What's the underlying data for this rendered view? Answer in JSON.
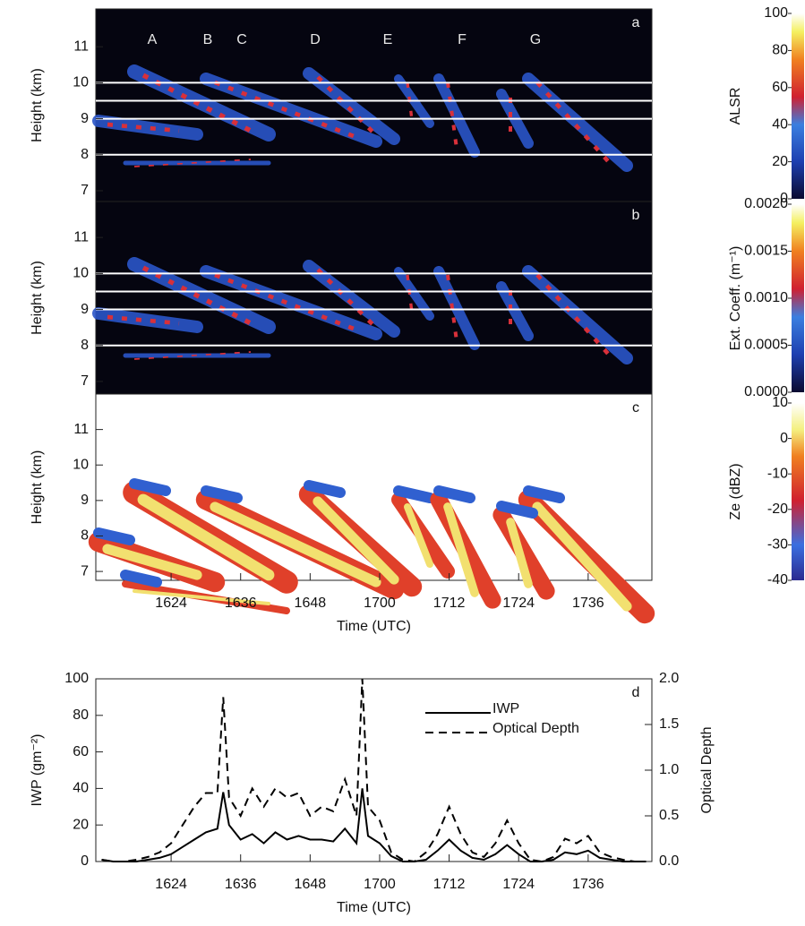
{
  "chart_data": [
    {
      "type": "heatmap",
      "panel_label": "a",
      "annotations": [
        "A",
        "B",
        "C",
        "D",
        "E",
        "F",
        "G"
      ],
      "ylabel": "Height (km)",
      "ylim": [
        6.7,
        12.05
      ],
      "yticks": [
        7,
        8,
        9,
        10,
        11
      ],
      "reference_lines": [
        8,
        9,
        9.5,
        10
      ],
      "colorbar": {
        "label": "ALSR",
        "lim": [
          0,
          100
        ],
        "ticks": [
          0,
          20,
          40,
          60,
          80,
          100
        ]
      }
    },
    {
      "type": "heatmap",
      "panel_label": "b",
      "ylabel": "Height (km)",
      "ylim": [
        6.65,
        12.0
      ],
      "yticks": [
        7,
        8,
        9,
        10,
        11
      ],
      "reference_lines": [
        8,
        9,
        9.5,
        10
      ],
      "colorbar": {
        "label": "Ext. Coeff. (m⁻¹)",
        "lim": [
          0,
          0.002
        ],
        "ticks": [
          {
            "value": 0,
            "label": "0.0000"
          },
          {
            "value": 0.0005,
            "label": "0.0005"
          },
          {
            "value": 0.001,
            "label": "0.0010"
          },
          {
            "value": 0.0015,
            "label": "0.0015"
          },
          {
            "value": 0.002,
            "label": "0.0020"
          }
        ]
      }
    },
    {
      "type": "heatmap",
      "panel_label": "c",
      "ylabel": "Height (km)",
      "ylim": [
        6.75,
        12.0
      ],
      "yticks": [
        7,
        8,
        9,
        10,
        11
      ],
      "colorbar": {
        "label": "Ze (dBZ)",
        "lim": [
          -40,
          10
        ],
        "ticks": [
          -40,
          -30,
          -20,
          -10,
          0,
          10
        ]
      },
      "xlabel": "Time (UTC)",
      "xlim": [
        971,
        1067
      ],
      "xticks": [
        {
          "value": 984,
          "label": "1624"
        },
        {
          "value": 996,
          "label": "1636"
        },
        {
          "value": 1008,
          "label": "1648"
        },
        {
          "value": 1020,
          "label": "1700"
        },
        {
          "value": 1032,
          "label": "1712"
        },
        {
          "value": 1044,
          "label": "1724"
        },
        {
          "value": 1056,
          "label": "1736"
        }
      ]
    },
    {
      "type": "line",
      "panel_label": "d",
      "ylabel": "IWP (gm⁻²)",
      "y2label": "Optical Depth",
      "xlabel": "Time (UTC)",
      "xlim": [
        971,
        1067
      ],
      "xticks": [
        {
          "value": 984,
          "label": "1624"
        },
        {
          "value": 996,
          "label": "1636"
        },
        {
          "value": 1008,
          "label": "1648"
        },
        {
          "value": 1020,
          "label": "1700"
        },
        {
          "value": 1032,
          "label": "1712"
        },
        {
          "value": 1044,
          "label": "1724"
        },
        {
          "value": 1056,
          "label": "1736"
        }
      ],
      "ylim": [
        0,
        100
      ],
      "yticks": [
        0,
        20,
        40,
        60,
        80,
        100
      ],
      "y2lim": [
        0,
        2
      ],
      "y2ticks": [
        {
          "value": 0,
          "label": "0.0"
        },
        {
          "value": 0.5,
          "label": "0.5"
        },
        {
          "value": 1,
          "label": "1.0"
        },
        {
          "value": 1.5,
          "label": "1.5"
        },
        {
          "value": 2,
          "label": "2.0"
        }
      ],
      "legend": "upper right",
      "x": [
        972,
        974,
        976,
        978,
        980,
        982,
        984,
        986,
        988,
        990,
        992,
        993,
        994,
        996,
        998,
        1000,
        1002,
        1004,
        1006,
        1008,
        1010,
        1012,
        1014,
        1016,
        1017,
        1018,
        1020,
        1022,
        1024,
        1026,
        1028,
        1030,
        1032,
        1034,
        1036,
        1038,
        1040,
        1042,
        1044,
        1046,
        1048,
        1050,
        1052,
        1054,
        1056,
        1058,
        1060,
        1062,
        1064,
        1066
      ],
      "series": [
        {
          "name": "IWP",
          "color": "#000000",
          "dashed": false,
          "values": [
            1,
            0,
            0,
            0,
            1,
            2,
            4,
            8,
            12,
            16,
            18,
            38,
            20,
            12,
            15,
            10,
            16,
            12,
            14,
            12,
            12,
            11,
            18,
            10,
            40,
            14,
            10,
            3,
            0,
            0,
            1,
            6,
            12,
            6,
            2,
            1,
            4,
            9,
            4,
            0,
            0,
            1,
            5,
            4,
            6,
            2,
            1,
            0,
            0,
            0
          ]
        },
        {
          "name": "Optical Depth",
          "color": "#000000",
          "dashed": true,
          "axis": "y2",
          "values": [
            0.02,
            0,
            0,
            0.02,
            0.05,
            0.1,
            0.2,
            0.4,
            0.6,
            0.75,
            0.75,
            1.8,
            0.7,
            0.5,
            0.8,
            0.6,
            0.8,
            0.7,
            0.75,
            0.5,
            0.6,
            0.55,
            0.9,
            0.5,
            2.0,
            0.6,
            0.45,
            0.1,
            0.02,
            0,
            0.1,
            0.3,
            0.6,
            0.3,
            0.1,
            0.05,
            0.2,
            0.45,
            0.2,
            0.02,
            0,
            0.05,
            0.25,
            0.2,
            0.28,
            0.1,
            0.05,
            0.02,
            0,
            0
          ]
        }
      ]
    }
  ]
}
